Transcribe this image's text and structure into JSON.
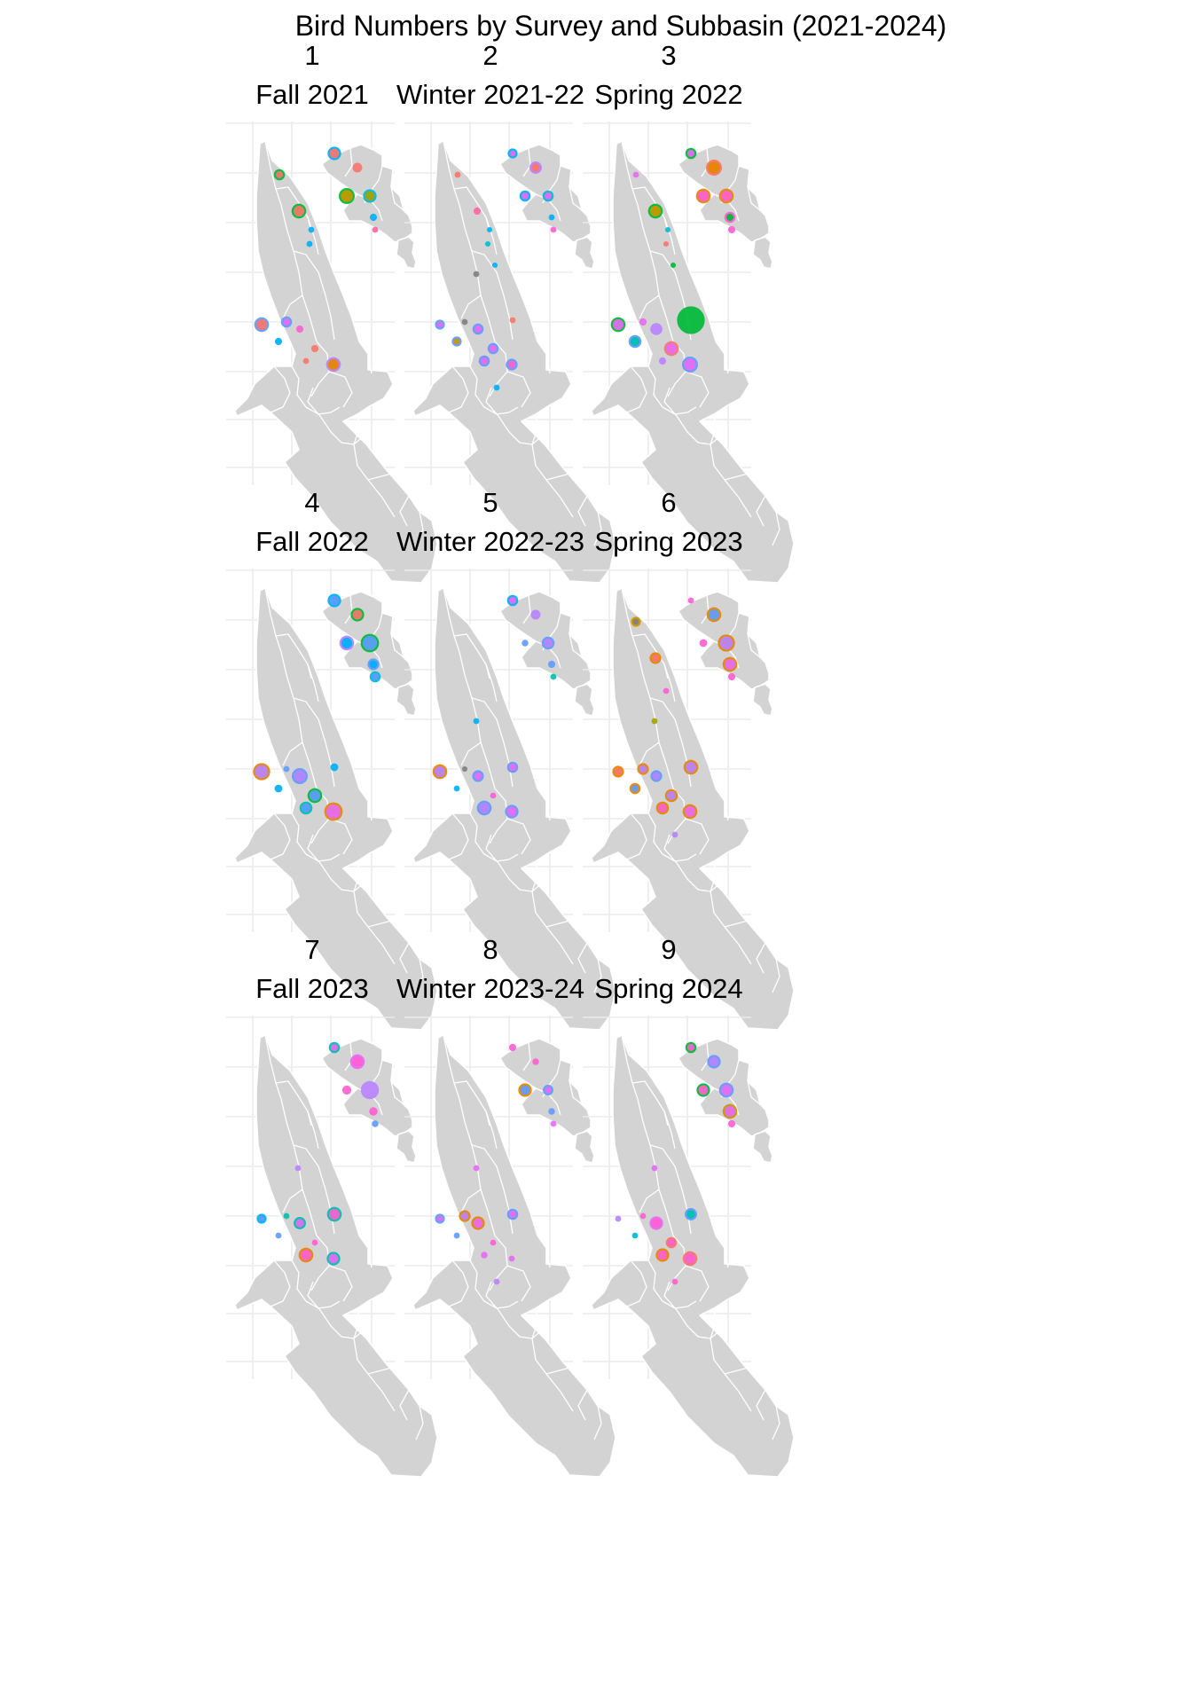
{
  "title": "Bird Numbers by Survey and Subbasin (2021-2024)",
  "colors": {
    "background": "#ffffff",
    "land": "#d3d3d3",
    "boundary": "#ffffff",
    "grid": "#ebebeb",
    "text": "#1a1a1a",
    "point_palette": [
      "#f8766d",
      "#e58700",
      "#c99800",
      "#a3a500",
      "#6bb100",
      "#00ba38",
      "#00c0af",
      "#00bcd8",
      "#00b0f6",
      "#619cff",
      "#b983ff",
      "#e76bf3",
      "#fd61d1",
      "#ff67a4",
      "#808080"
    ]
  },
  "panels": [
    {
      "number": "1",
      "season": "Fall 2021",
      "points": [
        {
          "site": 1,
          "size": 1.6,
          "fill": "#f8766d",
          "ring": "#00b0f6"
        },
        {
          "site": 2,
          "size": 1.6,
          "fill": "#f8766d",
          "ring": null
        },
        {
          "site": 3,
          "size": 1.2,
          "fill": "#f8766d",
          "ring": "#00ba38"
        },
        {
          "site": 4,
          "size": 2.0,
          "fill": "#c99800",
          "ring": "#00ba38"
        },
        {
          "site": 5,
          "size": 1.6,
          "fill": "#a3a500",
          "ring": "#00bcd8"
        },
        {
          "site": 6,
          "size": 1.2,
          "fill": "#00b0f6",
          "ring": null
        },
        {
          "site": 7,
          "size": 1.0,
          "fill": "#ff67a4",
          "ring": null
        },
        {
          "site": 8,
          "size": 1.8,
          "fill": "#f8766d",
          "ring": "#00ba38"
        },
        {
          "site": 9,
          "size": 1.0,
          "fill": "#00b0f6",
          "ring": null
        },
        {
          "site": 10,
          "size": 1.0,
          "fill": "#00b0f6",
          "ring": null
        },
        {
          "site": 13,
          "size": 1.8,
          "fill": "#f8766d",
          "ring": "#619cff"
        },
        {
          "site": 14,
          "size": 1.2,
          "fill": "#e76bf3",
          "ring": "#619cff"
        },
        {
          "site": 15,
          "size": 1.2,
          "fill": "#fd61d1",
          "ring": null
        },
        {
          "site": 16,
          "size": 1.2,
          "fill": "#00b0f6",
          "ring": null
        },
        {
          "site": 17,
          "size": 1.2,
          "fill": "#f8766d",
          "ring": null
        },
        {
          "site": 18,
          "size": 1.0,
          "fill": "#f8766d",
          "ring": null
        },
        {
          "site": 19,
          "size": 1.8,
          "fill": "#e58700",
          "ring": "#b983ff"
        }
      ]
    },
    {
      "number": "2",
      "season": "Winter 2021-22",
      "points": [
        {
          "site": 1,
          "size": 1.0,
          "fill": "#e76bf3",
          "ring": "#00b0f6"
        },
        {
          "site": 2,
          "size": 1.4,
          "fill": "#f8766d",
          "ring": "#b983ff"
        },
        {
          "site": 3,
          "size": 1.0,
          "fill": "#f8766d",
          "ring": null
        },
        {
          "site": 4,
          "size": 1.2,
          "fill": "#e76bf3",
          "ring": "#00b0f6"
        },
        {
          "site": 5,
          "size": 1.2,
          "fill": "#e76bf3",
          "ring": "#00bcd8"
        },
        {
          "site": 6,
          "size": 1.0,
          "fill": "#00b0f6",
          "ring": null
        },
        {
          "site": 7,
          "size": 1.0,
          "fill": "#fd61d1",
          "ring": null
        },
        {
          "site": 8,
          "size": 1.2,
          "fill": "#ff67a4",
          "ring": null
        },
        {
          "site": 9,
          "size": 0.9,
          "fill": "#00b0f6",
          "ring": null
        },
        {
          "site": 10,
          "size": 0.9,
          "fill": "#00bcd8",
          "ring": null
        },
        {
          "site": 11,
          "size": 0.9,
          "fill": "#00b0f6",
          "ring": null
        },
        {
          "site": 12,
          "size": 1.0,
          "fill": "#808080",
          "ring": null
        },
        {
          "site": 13,
          "size": 1.0,
          "fill": "#e76bf3",
          "ring": "#619cff"
        },
        {
          "site": 14,
          "size": 1.0,
          "fill": "#808080",
          "ring": null
        },
        {
          "site": 15,
          "size": 1.2,
          "fill": "#e76bf3",
          "ring": "#619cff"
        },
        {
          "site": 16,
          "size": 1.0,
          "fill": "#c99800",
          "ring": "#619cff"
        },
        {
          "site": 17,
          "size": 1.2,
          "fill": "#e76bf3",
          "ring": "#619cff"
        },
        {
          "site": 18,
          "size": 1.2,
          "fill": "#e76bf3",
          "ring": "#619cff"
        },
        {
          "site": 19,
          "size": 1.3,
          "fill": "#fd61d1",
          "ring": "#619cff"
        },
        {
          "site": 20,
          "size": 1.0,
          "fill": "#f8766d",
          "ring": null
        },
        {
          "site": 21,
          "size": 1.0,
          "fill": "#00b0f6",
          "ring": null
        }
      ]
    },
    {
      "number": "3",
      "season": "Spring 2022",
      "points": [
        {
          "site": 1,
          "size": 1.2,
          "fill": "#e76bf3",
          "ring": "#00ba38"
        },
        {
          "site": 2,
          "size": 2.0,
          "fill": "#e58700",
          "ring": "#f8766d"
        },
        {
          "site": 3,
          "size": 1.0,
          "fill": "#e76bf3",
          "ring": null
        },
        {
          "site": 4,
          "size": 1.8,
          "fill": "#fd61d1",
          "ring": "#e58700"
        },
        {
          "site": 5,
          "size": 1.8,
          "fill": "#fd61d1",
          "ring": "#e58700"
        },
        {
          "site": 6,
          "size": 1.2,
          "fill": "#00ba38",
          "ring": "#fd61d1"
        },
        {
          "site": 7,
          "size": 1.2,
          "fill": "#fd61d1",
          "ring": null
        },
        {
          "site": 8,
          "size": 1.8,
          "fill": "#c99800",
          "ring": "#00ba38"
        },
        {
          "site": 9,
          "size": 0.9,
          "fill": "#00bcd8",
          "ring": null
        },
        {
          "site": 10,
          "size": 0.9,
          "fill": "#f8766d",
          "ring": null
        },
        {
          "site": 11,
          "size": 0.9,
          "fill": "#00ba38",
          "ring": null
        },
        {
          "site": 13,
          "size": 1.8,
          "fill": "#e76bf3",
          "ring": "#00ba38"
        },
        {
          "site": 14,
          "size": 1.2,
          "fill": "#e76bf3",
          "ring": null
        },
        {
          "site": 15,
          "size": 2.0,
          "fill": "#b983ff",
          "ring": null
        },
        {
          "site": 16,
          "size": 1.5,
          "fill": "#00c0af",
          "ring": "#619cff"
        },
        {
          "site": 17,
          "size": 1.8,
          "fill": "#e76bf3",
          "ring": "#f8766d"
        },
        {
          "site": 18,
          "size": 1.2,
          "fill": "#b983ff",
          "ring": null
        },
        {
          "site": 19,
          "size": 2.0,
          "fill": "#e76bf3",
          "ring": "#619cff"
        },
        {
          "site": 20,
          "size": 4.6,
          "fill": "#00ba38",
          "ring": null
        }
      ]
    },
    {
      "number": "4",
      "season": "Fall 2022",
      "points": [
        {
          "site": 1,
          "size": 1.6,
          "fill": "#619cff",
          "ring": "#00b0f6"
        },
        {
          "site": 2,
          "size": 1.6,
          "fill": "#f8766d",
          "ring": "#00ba38"
        },
        {
          "site": 4,
          "size": 1.8,
          "fill": "#00b0f6",
          "ring": "#b983ff"
        },
        {
          "site": 5,
          "size": 2.4,
          "fill": "#619cff",
          "ring": "#00ba38"
        },
        {
          "site": 6,
          "size": 1.3,
          "fill": "#00b0f6",
          "ring": "#619cff"
        },
        {
          "site": 7,
          "size": 1.2,
          "fill": "#619cff",
          "ring": "#00bcd8"
        },
        {
          "site": 13,
          "size": 2.2,
          "fill": "#b983ff",
          "ring": "#e58700"
        },
        {
          "site": 14,
          "size": 1.0,
          "fill": "#619cff",
          "ring": null
        },
        {
          "site": 15,
          "size": 2.0,
          "fill": "#b983ff",
          "ring": "#619cff"
        },
        {
          "site": 16,
          "size": 1.3,
          "fill": "#00b0f6",
          "ring": null
        },
        {
          "site": 17,
          "size": 1.8,
          "fill": "#619cff",
          "ring": "#00ba38"
        },
        {
          "site": 18,
          "size": 1.5,
          "fill": "#619cff",
          "ring": "#00c0af"
        },
        {
          "site": 19,
          "size": 2.4,
          "fill": "#e76bf3",
          "ring": "#e58700"
        },
        {
          "site": 20,
          "size": 1.3,
          "fill": "#00b0f6",
          "ring": null
        }
      ]
    },
    {
      "number": "5",
      "season": "Winter 2022-23",
      "points": [
        {
          "site": 1,
          "size": 1.2,
          "fill": "#e76bf3",
          "ring": "#00b0f6"
        },
        {
          "site": 2,
          "size": 1.6,
          "fill": "#b983ff",
          "ring": null
        },
        {
          "site": 4,
          "size": 1.1,
          "fill": "#619cff",
          "ring": null
        },
        {
          "site": 5,
          "size": 1.5,
          "fill": "#b983ff",
          "ring": "#619cff"
        },
        {
          "site": 6,
          "size": 1.2,
          "fill": "#619cff",
          "ring": null
        },
        {
          "site": 7,
          "size": 1.0,
          "fill": "#00c0af",
          "ring": null
        },
        {
          "site": 12,
          "size": 1.0,
          "fill": "#00b0f6",
          "ring": null
        },
        {
          "site": 13,
          "size": 1.8,
          "fill": "#b983ff",
          "ring": "#e58700"
        },
        {
          "site": 14,
          "size": 0.9,
          "fill": "#808080",
          "ring": null
        },
        {
          "site": 15,
          "size": 1.3,
          "fill": "#e76bf3",
          "ring": "#619cff"
        },
        {
          "site": 16,
          "size": 1.0,
          "fill": "#00b0f6",
          "ring": null
        },
        {
          "site": 17,
          "size": 1.0,
          "fill": "#fd61d1",
          "ring": null
        },
        {
          "site": 18,
          "size": 1.8,
          "fill": "#b983ff",
          "ring": "#619cff"
        },
        {
          "site": 19,
          "size": 1.6,
          "fill": "#e76bf3",
          "ring": "#619cff"
        },
        {
          "site": 20,
          "size": 1.2,
          "fill": "#e76bf3",
          "ring": "#619cff"
        }
      ]
    },
    {
      "number": "6",
      "season": "Spring 2023",
      "points": [
        {
          "site": 1,
          "size": 1.0,
          "fill": "#fd61d1",
          "ring": null
        },
        {
          "site": 2,
          "size": 1.8,
          "fill": "#619cff",
          "ring": "#e58700"
        },
        {
          "site": 3,
          "size": 1.0,
          "fill": "#808080",
          "ring": "#c99800"
        },
        {
          "site": 4,
          "size": 1.3,
          "fill": "#fd61d1",
          "ring": null
        },
        {
          "site": 5,
          "size": 2.2,
          "fill": "#b983ff",
          "ring": "#e58700"
        },
        {
          "site": 6,
          "size": 1.8,
          "fill": "#e76bf3",
          "ring": "#e58700"
        },
        {
          "site": 7,
          "size": 1.2,
          "fill": "#fd61d1",
          "ring": null
        },
        {
          "site": 8,
          "size": 1.3,
          "fill": "#f8766d",
          "ring": "#e58700"
        },
        {
          "site": 10,
          "size": 1.0,
          "fill": "#fd61d1",
          "ring": null
        },
        {
          "site": 12,
          "size": 1.0,
          "fill": "#a3a500",
          "ring": null
        },
        {
          "site": 13,
          "size": 1.3,
          "fill": "#f8766d",
          "ring": "#e58700"
        },
        {
          "site": 14,
          "size": 1.3,
          "fill": "#b983ff",
          "ring": "#e58700"
        },
        {
          "site": 15,
          "size": 1.3,
          "fill": "#b983ff",
          "ring": "#619cff"
        },
        {
          "site": 16,
          "size": 1.2,
          "fill": "#619cff",
          "ring": "#e58700"
        },
        {
          "site": 17,
          "size": 1.5,
          "fill": "#b983ff",
          "ring": "#e58700"
        },
        {
          "site": 18,
          "size": 1.5,
          "fill": "#fd61d1",
          "ring": "#e58700"
        },
        {
          "site": 19,
          "size": 1.8,
          "fill": "#e76bf3",
          "ring": "#e58700"
        },
        {
          "site": 20,
          "size": 1.8,
          "fill": "#b983ff",
          "ring": "#e58700"
        },
        {
          "site": 21,
          "size": 1.0,
          "fill": "#b983ff",
          "ring": null
        }
      ]
    },
    {
      "number": "7",
      "season": "Fall 2023",
      "points": [
        {
          "site": 1,
          "size": 1.2,
          "fill": "#e76bf3",
          "ring": "#00c0af"
        },
        {
          "site": 2,
          "size": 1.8,
          "fill": "#fd61d1",
          "ring": "#e76bf3"
        },
        {
          "site": 4,
          "size": 1.5,
          "fill": "#fd61d1",
          "ring": null
        },
        {
          "site": 5,
          "size": 3.0,
          "fill": "#b983ff",
          "ring": null
        },
        {
          "site": 6,
          "size": 1.4,
          "fill": "#fd61d1",
          "ring": null
        },
        {
          "site": 7,
          "size": 1.1,
          "fill": "#619cff",
          "ring": null
        },
        {
          "site": 12,
          "size": 1.0,
          "fill": "#b983ff",
          "ring": null
        },
        {
          "site": 13,
          "size": 1.0,
          "fill": "#619cff",
          "ring": "#00b0f6"
        },
        {
          "site": 14,
          "size": 1.0,
          "fill": "#00c0af",
          "ring": null
        },
        {
          "site": 15,
          "size": 1.4,
          "fill": "#e76bf3",
          "ring": "#00c0af"
        },
        {
          "site": 16,
          "size": 1.0,
          "fill": "#619cff",
          "ring": null
        },
        {
          "site": 17,
          "size": 1.0,
          "fill": "#fd61d1",
          "ring": null
        },
        {
          "site": 18,
          "size": 1.8,
          "fill": "#fd61d1",
          "ring": "#e58700"
        },
        {
          "site": 19,
          "size": 1.6,
          "fill": "#e76bf3",
          "ring": "#00c0af"
        },
        {
          "site": 20,
          "size": 1.8,
          "fill": "#fd61d1",
          "ring": "#00c0af"
        }
      ]
    },
    {
      "number": "8",
      "season": "Winter 2023-24",
      "points": [
        {
          "site": 1,
          "size": 1.2,
          "fill": "#fd61d1",
          "ring": null
        },
        {
          "site": 2,
          "size": 1.1,
          "fill": "#fd61d1",
          "ring": null
        },
        {
          "site": 4,
          "size": 1.6,
          "fill": "#619cff",
          "ring": "#e58700"
        },
        {
          "site": 5,
          "size": 1.1,
          "fill": "#e76bf3",
          "ring": "#619cff"
        },
        {
          "site": 6,
          "size": 1.1,
          "fill": "#619cff",
          "ring": null
        },
        {
          "site": 7,
          "size": 1.0,
          "fill": "#e76bf3",
          "ring": null
        },
        {
          "site": 12,
          "size": 1.0,
          "fill": "#e76bf3",
          "ring": null
        },
        {
          "site": 13,
          "size": 1.0,
          "fill": "#e76bf3",
          "ring": "#619cff"
        },
        {
          "site": 14,
          "size": 1.3,
          "fill": "#b983ff",
          "ring": "#e58700"
        },
        {
          "site": 15,
          "size": 1.6,
          "fill": "#e76bf3",
          "ring": "#e58700"
        },
        {
          "site": 16,
          "size": 1.0,
          "fill": "#619cff",
          "ring": null
        },
        {
          "site": 17,
          "size": 1.0,
          "fill": "#fd61d1",
          "ring": null
        },
        {
          "site": 18,
          "size": 1.1,
          "fill": "#e76bf3",
          "ring": null
        },
        {
          "site": 19,
          "size": 1.0,
          "fill": "#e76bf3",
          "ring": null
        },
        {
          "site": 20,
          "size": 1.2,
          "fill": "#e76bf3",
          "ring": "#619cff"
        },
        {
          "site": 21,
          "size": 1.0,
          "fill": "#b983ff",
          "ring": null
        }
      ]
    },
    {
      "number": "9",
      "season": "Spring 2024",
      "points": [
        {
          "site": 1,
          "size": 1.2,
          "fill": "#fd61d1",
          "ring": "#00ba38"
        },
        {
          "site": 2,
          "size": 1.6,
          "fill": "#b983ff",
          "ring": "#619cff"
        },
        {
          "site": 4,
          "size": 1.6,
          "fill": "#fd61d1",
          "ring": "#00ba38"
        },
        {
          "site": 5,
          "size": 1.8,
          "fill": "#e76bf3",
          "ring": "#619cff"
        },
        {
          "site": 6,
          "size": 1.8,
          "fill": "#e76bf3",
          "ring": "#c99800"
        },
        {
          "site": 7,
          "size": 1.2,
          "fill": "#fd61d1",
          "ring": null
        },
        {
          "site": 12,
          "size": 1.0,
          "fill": "#e76bf3",
          "ring": null
        },
        {
          "site": 13,
          "size": 1.0,
          "fill": "#b983ff",
          "ring": null
        },
        {
          "site": 14,
          "size": 1.0,
          "fill": "#fd61d1",
          "ring": null
        },
        {
          "site": 15,
          "size": 1.6,
          "fill": "#fd61d1",
          "ring": "#e76bf3"
        },
        {
          "site": 16,
          "size": 1.0,
          "fill": "#00bcd8",
          "ring": null
        },
        {
          "site": 17,
          "size": 1.2,
          "fill": "#fd61d1",
          "ring": "#f8766d"
        },
        {
          "site": 18,
          "size": 1.6,
          "fill": "#fd61d1",
          "ring": "#e58700"
        },
        {
          "site": 19,
          "size": 1.8,
          "fill": "#fd61d1",
          "ring": "#f8766d"
        },
        {
          "site": 20,
          "size": 1.4,
          "fill": "#00c0af",
          "ring": "#619cff"
        },
        {
          "site": 21,
          "size": 1.0,
          "fill": "#fd61d1",
          "ring": null
        }
      ]
    }
  ]
}
